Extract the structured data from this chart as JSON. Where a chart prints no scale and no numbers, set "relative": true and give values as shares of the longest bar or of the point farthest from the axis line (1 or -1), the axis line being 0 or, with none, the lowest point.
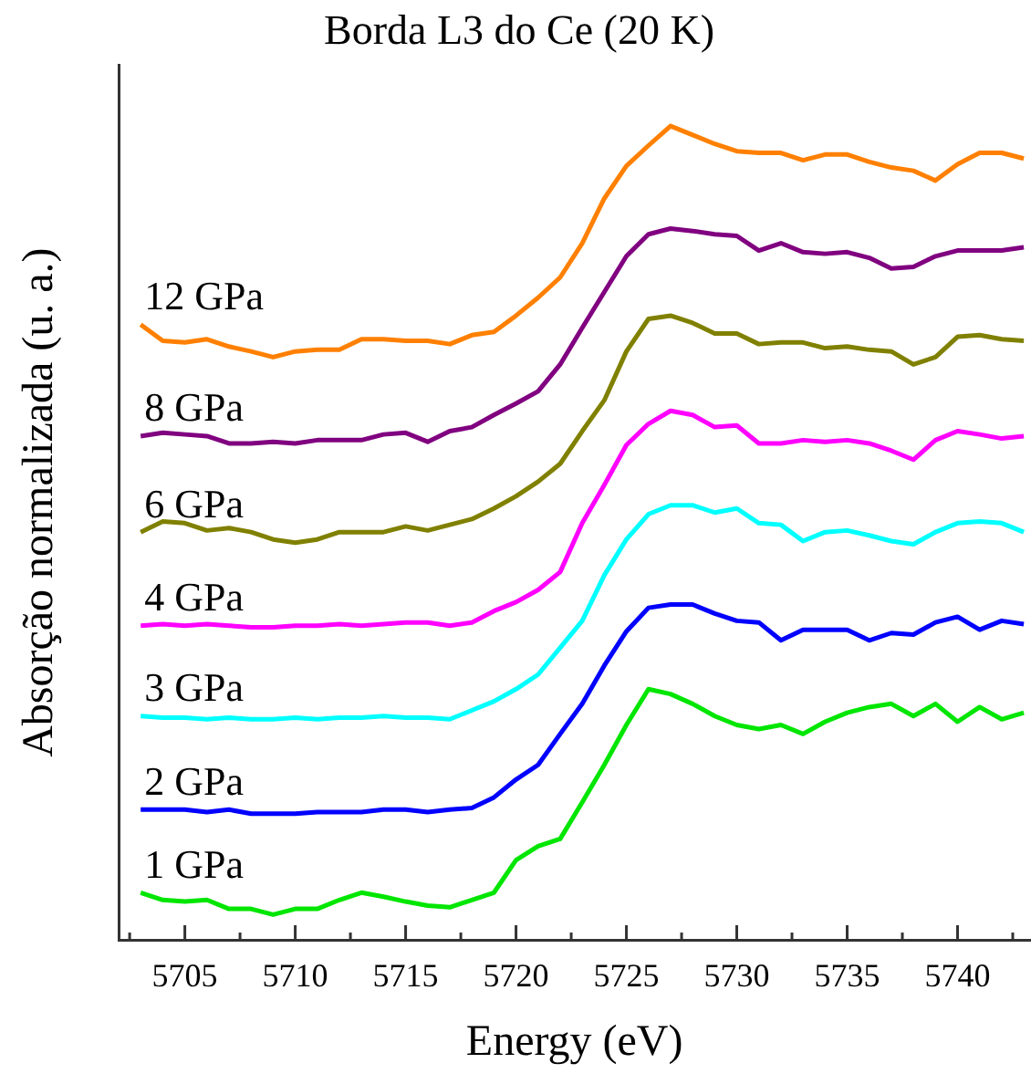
{
  "chart_data": {
    "type": "line",
    "title": "Borda L3 do Ce (20 K)",
    "xlabel": "Energy (eV)",
    "ylabel": "Absorção normalizada (u. a.)",
    "relative": true,
    "marker": "none",
    "x": [
      5703,
      5704,
      5705,
      5706,
      5707,
      5708,
      5709,
      5710,
      5711,
      5712,
      5713,
      5714,
      5715,
      5716,
      5717,
      5718,
      5719,
      5720,
      5721,
      5722,
      5723,
      5724,
      5725,
      5726,
      5727,
      5728,
      5729,
      5730,
      5731,
      5732,
      5733,
      5734,
      5735,
      5736,
      5737,
      5738,
      5739,
      5740,
      5741,
      5742,
      5743
    ],
    "xlim": [
      5702,
      5743.3
    ],
    "xticks": [
      {
        "value": 5702.5,
        "label": null
      },
      5705,
      {
        "value": 5707.5,
        "label": null
      },
      5710,
      {
        "value": 5712.5,
        "label": null
      },
      5715,
      {
        "value": 5717.5,
        "label": null
      },
      5720,
      {
        "value": 5722.5,
        "label": null
      },
      5725,
      {
        "value": 5727.5,
        "label": null
      },
      5730,
      {
        "value": 5732.5,
        "label": null
      },
      5735,
      {
        "value": 5737.5,
        "label": null
      },
      5740,
      {
        "value": 5742.5,
        "label": null
      }
    ],
    "series": [
      {
        "name": "12 GPa",
        "color": "#ff8000",
        "values": [
          0.756,
          0.736,
          0.734,
          0.738,
          0.729,
          0.723,
          0.716,
          0.723,
          0.725,
          0.725,
          0.738,
          0.738,
          0.736,
          0.736,
          0.732,
          0.743,
          0.747,
          0.767,
          0.789,
          0.814,
          0.856,
          0.911,
          0.951,
          0.976,
          1.0,
          0.989,
          0.978,
          0.969,
          0.967,
          0.967,
          0.958,
          0.965,
          0.965,
          0.956,
          0.949,
          0.945,
          0.933,
          0.953,
          0.967,
          0.967,
          0.96
        ]
      },
      {
        "name": "8 GPa",
        "color": "#800080",
        "values": [
          0.619,
          0.623,
          0.621,
          0.619,
          0.61,
          0.61,
          0.612,
          0.61,
          0.614,
          0.614,
          0.614,
          0.621,
          0.623,
          0.612,
          0.625,
          0.63,
          0.645,
          0.659,
          0.674,
          0.707,
          0.752,
          0.796,
          0.84,
          0.867,
          0.874,
          0.871,
          0.867,
          0.865,
          0.847,
          0.856,
          0.845,
          0.843,
          0.845,
          0.838,
          0.825,
          0.827,
          0.84,
          0.847,
          0.847,
          0.847,
          0.851
        ]
      },
      {
        "name": "6 GPa",
        "color": "#808000",
        "values": [
          0.501,
          0.514,
          0.512,
          0.503,
          0.506,
          0.501,
          0.492,
          0.488,
          0.492,
          0.501,
          0.501,
          0.501,
          0.508,
          0.503,
          0.51,
          0.517,
          0.53,
          0.545,
          0.563,
          0.585,
          0.625,
          0.663,
          0.723,
          0.763,
          0.767,
          0.758,
          0.745,
          0.745,
          0.732,
          0.734,
          0.734,
          0.727,
          0.729,
          0.725,
          0.723,
          0.707,
          0.716,
          0.741,
          0.743,
          0.738,
          0.736
        ]
      },
      {
        "name": "4 GPa",
        "color": "#ff00ff",
        "values": [
          0.386,
          0.388,
          0.386,
          0.388,
          0.386,
          0.384,
          0.384,
          0.386,
          0.386,
          0.388,
          0.386,
          0.388,
          0.39,
          0.39,
          0.386,
          0.39,
          0.404,
          0.415,
          0.43,
          0.452,
          0.512,
          0.559,
          0.608,
          0.634,
          0.65,
          0.645,
          0.63,
          0.632,
          0.61,
          0.61,
          0.614,
          0.612,
          0.614,
          0.61,
          0.601,
          0.59,
          0.614,
          0.625,
          0.621,
          0.616,
          0.619
        ]
      },
      {
        "name": "3 GPa",
        "color": "#00ffff",
        "values": [
          0.275,
          0.273,
          0.273,
          0.271,
          0.273,
          0.271,
          0.271,
          0.273,
          0.271,
          0.273,
          0.273,
          0.275,
          0.273,
          0.273,
          0.271,
          0.282,
          0.293,
          0.308,
          0.326,
          0.359,
          0.392,
          0.448,
          0.492,
          0.523,
          0.534,
          0.534,
          0.525,
          0.53,
          0.512,
          0.51,
          0.49,
          0.501,
          0.503,
          0.497,
          0.49,
          0.486,
          0.501,
          0.512,
          0.514,
          0.512,
          0.501
        ]
      },
      {
        "name": "2 GPa",
        "color": "#0000ff",
        "values": [
          0.16,
          0.16,
          0.16,
          0.157,
          0.16,
          0.155,
          0.155,
          0.155,
          0.157,
          0.157,
          0.157,
          0.16,
          0.16,
          0.157,
          0.16,
          0.162,
          0.175,
          0.197,
          0.215,
          0.253,
          0.29,
          0.337,
          0.379,
          0.408,
          0.412,
          0.412,
          0.401,
          0.392,
          0.39,
          0.368,
          0.381,
          0.381,
          0.381,
          0.368,
          0.377,
          0.375,
          0.39,
          0.397,
          0.381,
          0.392,
          0.388
        ]
      },
      {
        "name": "1 GPa",
        "color": "#00e600",
        "values": [
          0.058,
          0.049,
          0.047,
          0.049,
          0.038,
          0.038,
          0.031,
          0.038,
          0.038,
          0.049,
          0.058,
          0.053,
          0.047,
          0.042,
          0.04,
          0.049,
          0.058,
          0.098,
          0.115,
          0.124,
          0.169,
          0.215,
          0.264,
          0.308,
          0.302,
          0.29,
          0.275,
          0.264,
          0.259,
          0.264,
          0.253,
          0.268,
          0.279,
          0.286,
          0.29,
          0.275,
          0.29,
          0.268,
          0.286,
          0.271,
          0.279
        ]
      }
    ]
  }
}
